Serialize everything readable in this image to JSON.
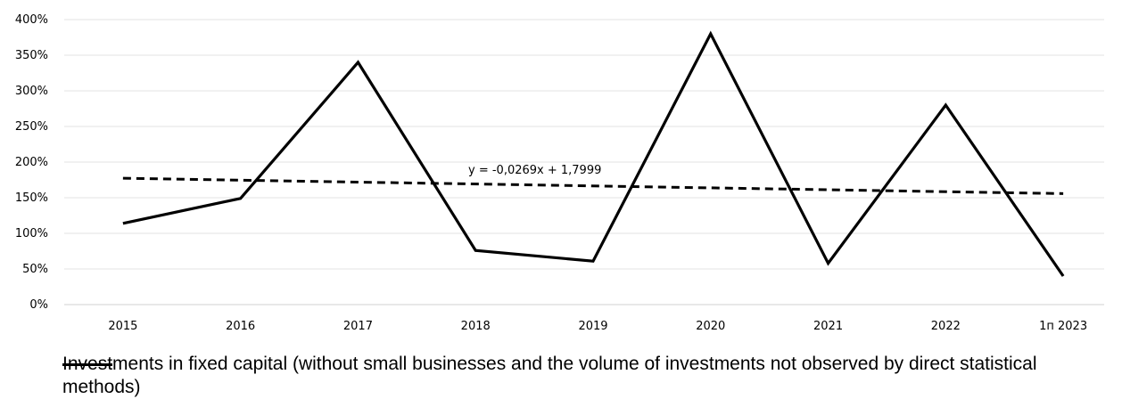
{
  "chart_data": {
    "type": "line",
    "categories": [
      "2015",
      "2016",
      "2017",
      "2018",
      "2019",
      "2020",
      "2021",
      "2022",
      "1п 2023"
    ],
    "series": [
      {
        "name": "Investments in fixed capital (without small businesses and the volume of investments not observed by direct statistical methods)",
        "values": [
          114,
          149,
          340,
          76,
          61,
          380,
          58,
          280,
          40
        ],
        "color": "#000000",
        "style": "solid"
      }
    ],
    "trendline": {
      "equation": "y = -0,0269x + 1,7999",
      "slope": -2.69,
      "intercept": 179.99,
      "style": "dashed",
      "color": "#000000"
    },
    "yticks": [
      "0%",
      "50%",
      "100%",
      "150%",
      "200%",
      "250%",
      "300%",
      "350%",
      "400%"
    ],
    "ylim": [
      0,
      400
    ],
    "grid": true,
    "legend_position": "bottom"
  }
}
